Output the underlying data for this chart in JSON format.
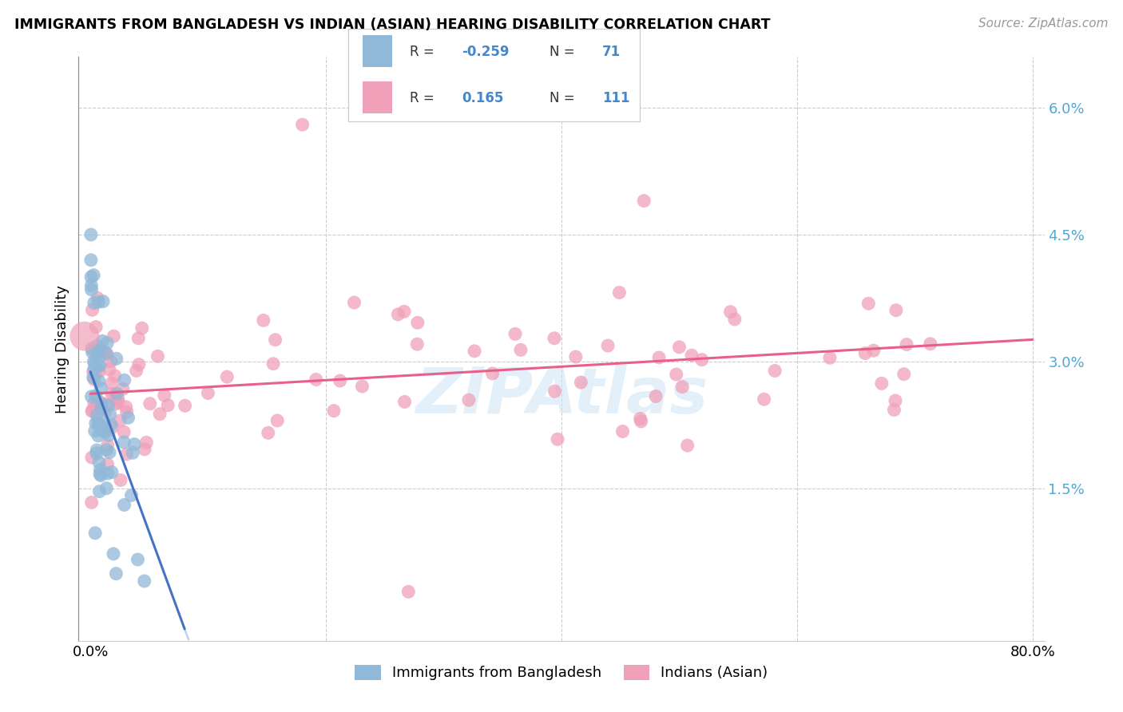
{
  "title": "IMMIGRANTS FROM BANGLADESH VS INDIAN (ASIAN) HEARING DISABILITY CORRELATION CHART",
  "source": "Source: ZipAtlas.com",
  "ylabel": "Hearing Disability",
  "color_bangladesh": "#90b8d8",
  "color_india": "#f0a0b8",
  "color_line_bangladesh": "#4472c4",
  "color_line_india": "#e8608a",
  "color_trendline_dashed": "#b8d4ee",
  "ytick_vals": [
    0.0,
    1.5,
    3.0,
    4.5,
    6.0
  ],
  "ytick_labels": [
    "",
    "1.5%",
    "3.0%",
    "4.5%",
    "6.0%"
  ],
  "xlim_pct": [
    0.0,
    80.0
  ],
  "ylim_pct": [
    -0.3,
    6.6
  ],
  "bang_intercept": 2.88,
  "bang_slope": -0.38,
  "bang_solid_end": 8.0,
  "india_intercept": 2.62,
  "india_slope": 0.008
}
